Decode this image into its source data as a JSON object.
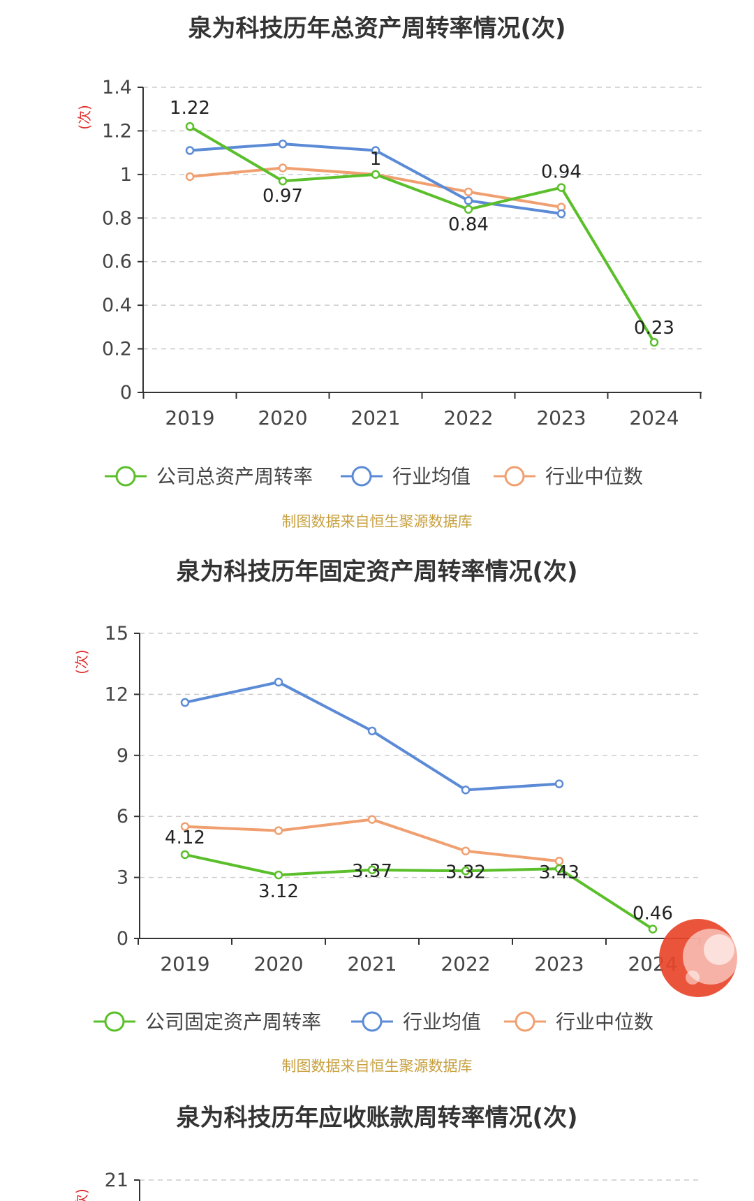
{
  "colors": {
    "company": "#5abf2a",
    "industry_avg": "#5b8ad6",
    "industry_median": "#f0a070",
    "grid": "#cccccc",
    "axis": "#333333",
    "source_note": "#c8a040",
    "y_unit": "#e03030",
    "stamp": "#e8452a"
  },
  "charts": [
    {
      "title": "泉为科技历年总资产周转率情况(次)",
      "y_unit": "(次)",
      "source_note": "制图数据来自恒生聚源数据库",
      "legend": [
        "公司总资产周转率",
        "行业均值",
        "行业中位数"
      ]
    },
    {
      "title": "泉为科技历年固定资产周转率情况(次)",
      "y_unit": "(次)",
      "source_note": "制图数据来自恒生聚源数据库",
      "legend": [
        "公司固定资产周转率",
        "行业均值",
        "行业中位数"
      ]
    },
    {
      "title": "泉为科技历年应收账款周转率情况(次)",
      "y_unit": "(次)"
    }
  ],
  "chart_data": [
    {
      "type": "line",
      "title": "泉为科技历年总资产周转率情况(次)",
      "ylabel": "(次)",
      "categories": [
        "2019",
        "2020",
        "2021",
        "2022",
        "2023",
        "2024"
      ],
      "ylim": [
        0,
        1.4
      ],
      "yticks": [
        "0",
        "0.2",
        "0.4",
        "0.6",
        "0.8",
        "1",
        "1.2",
        "1.4"
      ],
      "grid": true,
      "legend_position": "bottom",
      "series": [
        {
          "name": "公司总资产周转率",
          "values": [
            1.22,
            0.97,
            1,
            0.84,
            0.94,
            0.23
          ],
          "labels": [
            "1.22",
            "0.97",
            "1",
            "0.84",
            "0.94",
            "0.23"
          ]
        },
        {
          "name": "行业均值",
          "values": [
            1.11,
            1.14,
            1.11,
            0.88,
            0.82,
            null
          ]
        },
        {
          "name": "行业中位数",
          "values": [
            0.99,
            1.03,
            1.0,
            0.92,
            0.85,
            null
          ]
        }
      ]
    },
    {
      "type": "line",
      "title": "泉为科技历年固定资产周转率情况(次)",
      "ylabel": "(次)",
      "categories": [
        "2019",
        "2020",
        "2021",
        "2022",
        "2023",
        "2024"
      ],
      "ylim": [
        0,
        15
      ],
      "yticks": [
        "0",
        "3",
        "6",
        "9",
        "12",
        "15"
      ],
      "grid": true,
      "legend_position": "bottom",
      "series": [
        {
          "name": "公司固定资产周转率",
          "values": [
            4.12,
            3.12,
            3.37,
            3.32,
            3.43,
            0.46
          ],
          "labels": [
            "4.12",
            "3.12",
            "3.37",
            "3.32",
            "3.43",
            "0.46"
          ]
        },
        {
          "name": "行业均值",
          "values": [
            11.6,
            12.6,
            10.2,
            7.3,
            7.6,
            null
          ]
        },
        {
          "name": "行业中位数",
          "values": [
            5.5,
            5.3,
            5.85,
            4.3,
            3.8,
            null
          ]
        }
      ]
    },
    {
      "type": "line",
      "title": "泉为科技历年应收账款周转率情况(次)",
      "ylabel": "(次)",
      "yticks": [
        "21"
      ],
      "grid": true,
      "series": []
    }
  ]
}
